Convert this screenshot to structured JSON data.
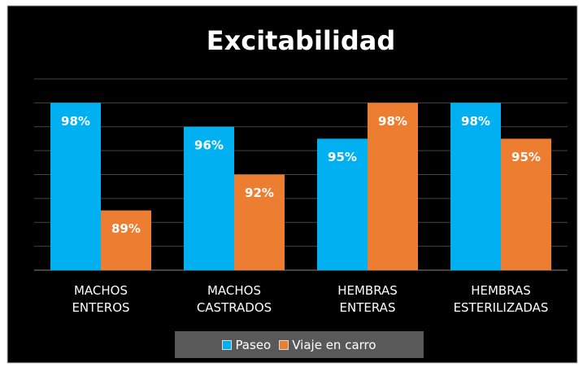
{
  "chart_data": {
    "type": "bar",
    "title": "Excitabilidad",
    "categories": [
      "MACHOS ENTEROS",
      "MACHOS CASTRADOS",
      "HEMBRAS ENTERAS",
      "HEMBRAS ESTERILIZADAS"
    ],
    "series": [
      {
        "name": "Paseo",
        "color": "#00b0f0",
        "values": [
          98,
          96,
          95,
          98
        ],
        "value_labels": [
          "98%",
          "96%",
          "95%",
          "98%"
        ]
      },
      {
        "name": "Viaje en carro",
        "color": "#ed7d31",
        "values": [
          89,
          92,
          98,
          95
        ],
        "value_labels": [
          "89%",
          "92%",
          "98%",
          "95%"
        ]
      }
    ],
    "ylim": [
      84,
      100
    ],
    "yticks": [
      84,
      86,
      88,
      90,
      92,
      94,
      96,
      98,
      100
    ],
    "grid": true,
    "legend": "bottom"
  }
}
